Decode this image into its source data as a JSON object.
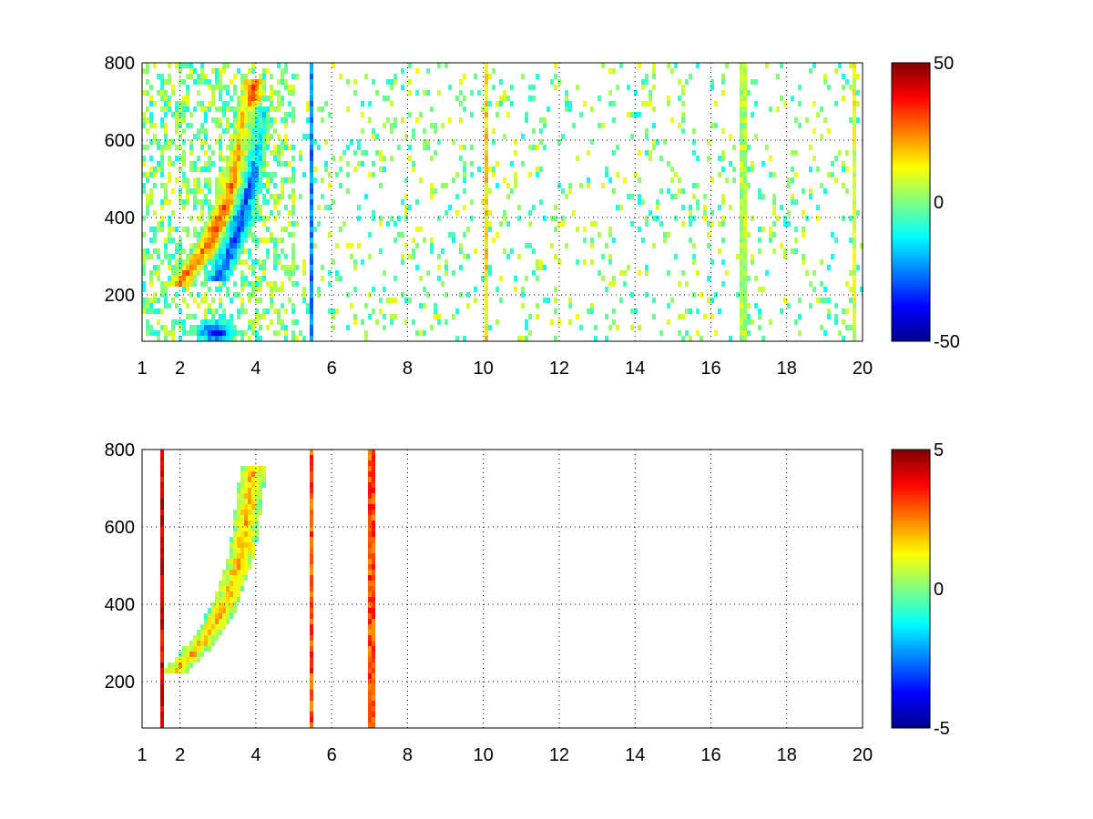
{
  "chart_data": [
    {
      "type": "heatmap",
      "title": "",
      "xlabel": "",
      "ylabel": "",
      "xlim": [
        1,
        20
      ],
      "ylim": [
        80,
        800
      ],
      "xticks": [
        1,
        2,
        4,
        6,
        8,
        10,
        12,
        14,
        16,
        18,
        20
      ],
      "yticks": [
        200,
        400,
        600,
        800
      ],
      "grid": true,
      "colormap": "jet",
      "clim": [
        -50,
        50
      ],
      "colorbar_ticks": [
        -50,
        0,
        50
      ],
      "features": [
        {
          "kind": "band",
          "description_value": "positive",
          "x": [
            1.9,
            2.2,
            2.6,
            3.0,
            3.4,
            3.7,
            3.9
          ],
          "y": [
            230,
            270,
            320,
            400,
            500,
            620,
            760
          ],
          "value": 30
        },
        {
          "kind": "band",
          "description_value": "negative",
          "x": [
            2.9,
            3.2,
            3.5,
            3.8,
            4.0
          ],
          "y": [
            240,
            300,
            380,
            500,
            700
          ],
          "value": -30
        },
        {
          "kind": "blob",
          "x": 2.9,
          "y": 110,
          "value": -40
        },
        {
          "kind": "line",
          "x": 5.4,
          "value": -25
        },
        {
          "kind": "line",
          "x": 10.0,
          "value": 15
        },
        {
          "kind": "line",
          "x": 16.8,
          "value": 5
        },
        {
          "kind": "line",
          "x": 19.7,
          "value": 10
        }
      ]
    },
    {
      "type": "heatmap",
      "title": "",
      "xlabel": "",
      "ylabel": "",
      "xlim": [
        1,
        20
      ],
      "ylim": [
        80,
        800
      ],
      "xticks": [
        1,
        2,
        4,
        6,
        8,
        10,
        12,
        14,
        16,
        18,
        20
      ],
      "yticks": [
        200,
        400,
        600,
        800
      ],
      "grid": true,
      "colormap": "jet",
      "clim": [
        -5,
        5
      ],
      "colorbar_ticks": [
        -5,
        0,
        5
      ],
      "features": [
        {
          "kind": "band",
          "x": [
            1.8,
            2.3,
            2.8,
            3.2,
            3.6,
            3.9
          ],
          "y": [
            230,
            280,
            340,
            420,
            540,
            760
          ],
          "value": 2
        },
        {
          "kind": "line",
          "x": 5.4,
          "value": 3
        },
        {
          "kind": "line",
          "x": 1.5,
          "value": 4
        },
        {
          "kind": "line",
          "x": 7.0,
          "value": 3
        }
      ]
    }
  ]
}
